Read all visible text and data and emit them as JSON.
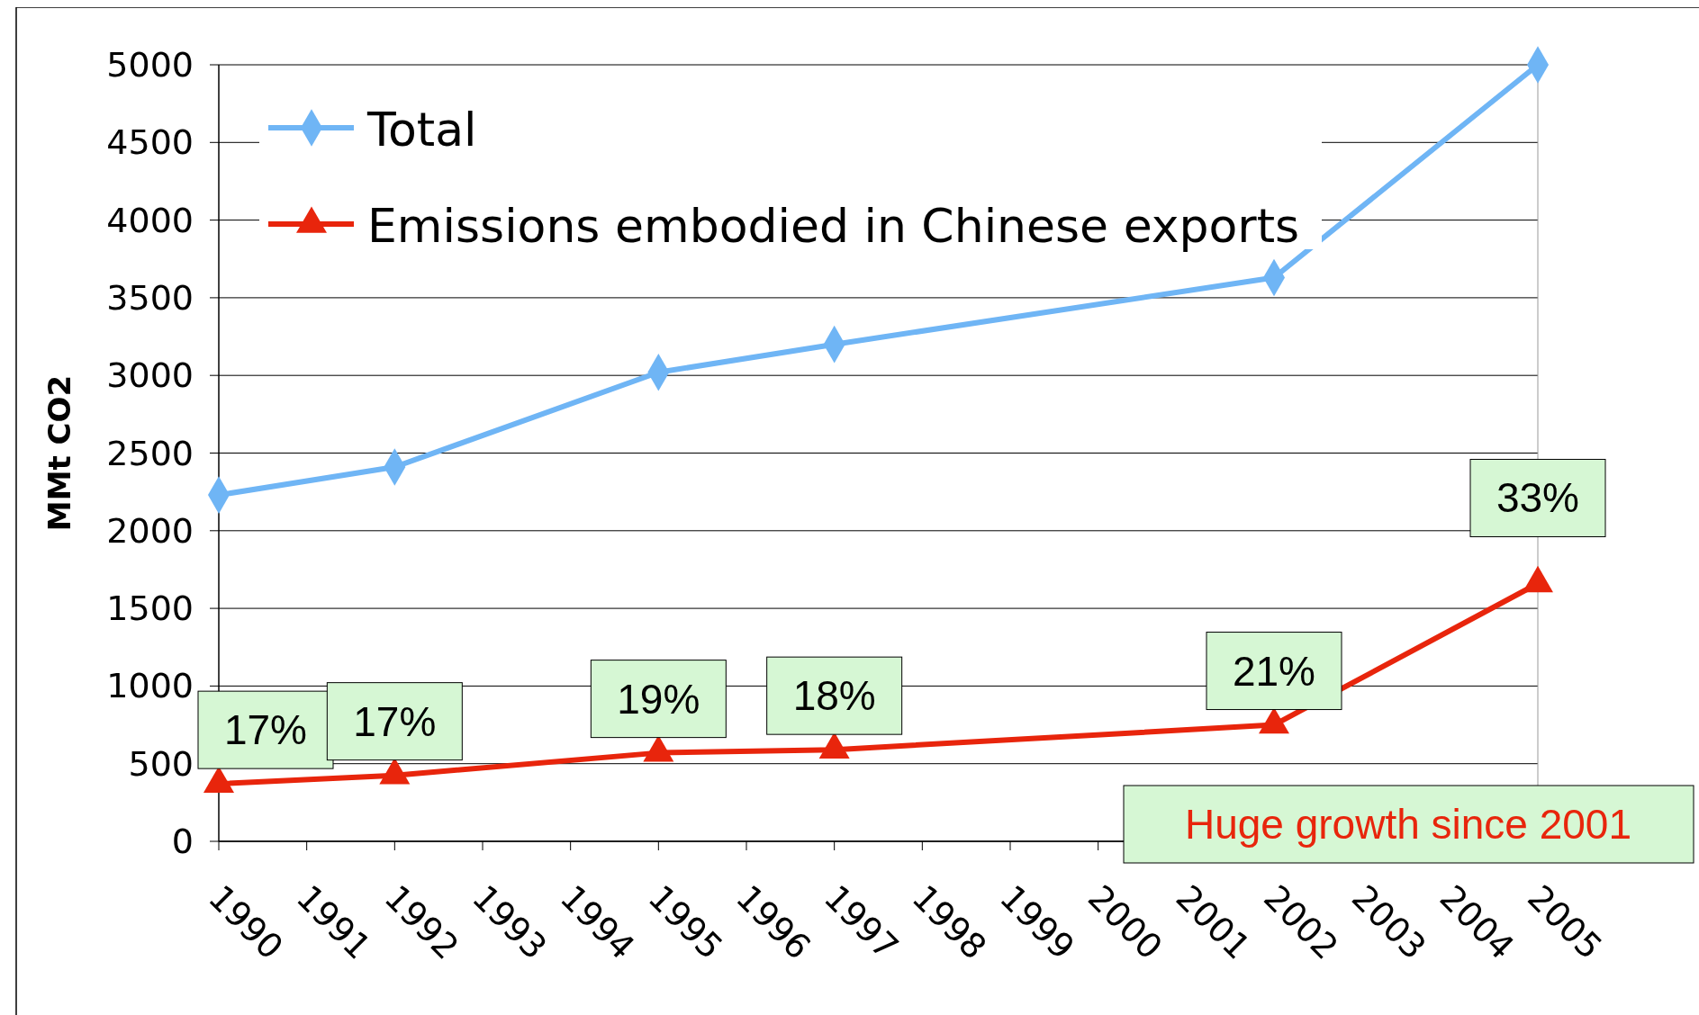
{
  "chart_data": {
    "type": "line",
    "ylabel": "MMt CO2",
    "xlim": [
      1990,
      2005
    ],
    "xticks": [
      1990,
      1991,
      1992,
      1993,
      1994,
      1995,
      1996,
      1997,
      1998,
      1999,
      2000,
      2001,
      2002,
      2003,
      2004,
      2005
    ],
    "ylim": [
      0,
      5000
    ],
    "yticks": [
      0,
      500,
      1000,
      1500,
      2000,
      2500,
      3000,
      3500,
      4000,
      4500,
      5000
    ],
    "grid": "y",
    "legend": "top left",
    "line_style": "solid",
    "series": [
      {
        "name": "Total",
        "color": "#6fb5f5",
        "marker": "diamond",
        "x": [
          1990,
          1992,
          1995,
          1997,
          2002,
          2005
        ],
        "values": [
          2230,
          2410,
          3020,
          3200,
          3630,
          5000
        ]
      },
      {
        "name": "Emissions embodied in Chinese exports",
        "color": "#e8250c",
        "marker": "triangle",
        "x": [
          1990,
          1992,
          1995,
          1997,
          2002,
          2005
        ],
        "values": [
          370,
          425,
          570,
          590,
          750,
          1660
        ]
      }
    ],
    "annotations": [
      {
        "text": "17%",
        "x": 1990,
        "y": 370
      },
      {
        "text": "17%",
        "x": 1992,
        "y": 425
      },
      {
        "text": "19%",
        "x": 1995,
        "y": 570
      },
      {
        "text": "18%",
        "x": 1997,
        "y": 590
      },
      {
        "text": "21%",
        "x": 2002,
        "y": 750
      },
      {
        "text": "33%",
        "x": 2005,
        "y": 1660
      },
      "Huge growth since 2001"
    ]
  }
}
